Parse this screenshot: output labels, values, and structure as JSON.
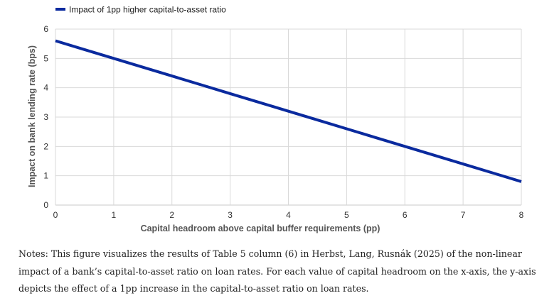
{
  "chart_data": {
    "type": "line",
    "xlabel": "Capital headroom above capital buffer requirements (pp)",
    "ylabel": "Impact on bank lending rate (bps)",
    "xlim": [
      0,
      8
    ],
    "ylim": [
      0,
      6
    ],
    "x_ticks": [
      "0",
      "1",
      "2",
      "3",
      "4",
      "5",
      "6",
      "7",
      "8"
    ],
    "y_ticks": [
      "0",
      "1",
      "2",
      "3",
      "4",
      "5",
      "6"
    ],
    "grid": true,
    "legend_position": "top-left",
    "series": [
      {
        "name": "Impact of 1pp higher capital-to-asset ratio",
        "color": "#0a2a9e",
        "x": [
          0,
          0.5,
          1,
          1.5,
          2,
          2.5,
          3,
          3.5,
          4,
          4.5,
          5,
          5.5,
          6,
          6.5,
          7,
          7.5,
          8
        ],
        "y": [
          5.6,
          5.3,
          5.0,
          4.7,
          4.4,
          4.1,
          3.8,
          3.5,
          3.2,
          2.9,
          2.6,
          2.3,
          2.0,
          1.7,
          1.4,
          1.1,
          0.8
        ]
      }
    ]
  },
  "notes": "Notes: This figure visualizes the results of Table 5 column (6) in Herbst, Lang, Rusnák (2025) of the non-linear impact of a bank’s capital-to-asset ratio on loan rates. For each value of capital headroom on the x-axis, the y-axis depicts the effect of a 1pp increase in the capital-to-asset ratio on loan rates."
}
